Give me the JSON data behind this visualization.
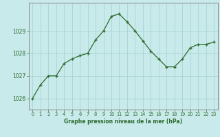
{
  "x": [
    0,
    1,
    2,
    3,
    4,
    5,
    6,
    7,
    8,
    9,
    10,
    11,
    12,
    13,
    14,
    15,
    16,
    17,
    18,
    19,
    20,
    21,
    22,
    23
  ],
  "y": [
    1026.0,
    1026.6,
    1027.0,
    1027.0,
    1027.55,
    1027.75,
    1027.9,
    1028.0,
    1028.6,
    1029.0,
    1029.65,
    1029.75,
    1029.4,
    1029.0,
    1028.55,
    1028.1,
    1027.75,
    1027.4,
    1027.4,
    1027.75,
    1028.25,
    1028.4,
    1028.4,
    1028.5
  ],
  "line_color": "#2d6a2d",
  "marker": "+",
  "bg_color": "#c8eaea",
  "grid_color": "#a8d4d4",
  "axis_label_color": "#2d6a2d",
  "tick_label_color": "#2d6a2d",
  "xlabel": "Graphe pression niveau de la mer (hPa)",
  "ylim": [
    1025.5,
    1030.25
  ],
  "yticks": [
    1026,
    1027,
    1028,
    1029
  ],
  "xlim": [
    -0.5,
    23.5
  ],
  "spine_color": "#888888",
  "xlabel_fontsize": 5.5,
  "ytick_fontsize": 5.5,
  "xtick_fontsize": 4.8
}
